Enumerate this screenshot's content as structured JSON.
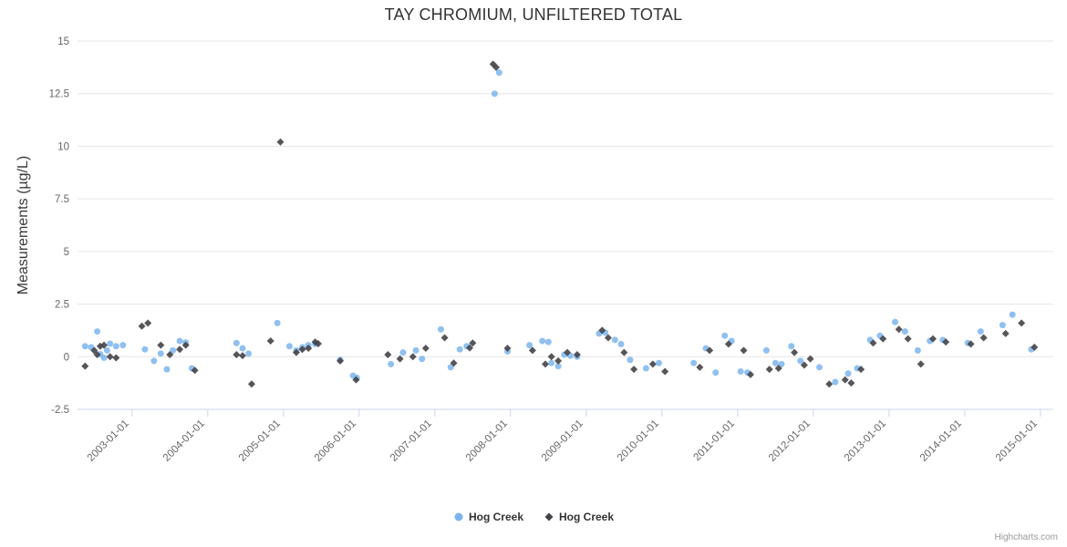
{
  "chart_data": {
    "type": "scatter",
    "title": "TAY CHROMIUM, UNFILTERED TOTAL",
    "xlabel": "",
    "ylabel": "Measurements (µg/L)",
    "ylim": [
      -2.5,
      15
    ],
    "yticks": [
      -2.5,
      0,
      2.5,
      5,
      7.5,
      10,
      12.5,
      15
    ],
    "xlim": [
      2002.28,
      2015.17
    ],
    "xticks": [
      {
        "value": 2003,
        "label": "2003-01-01"
      },
      {
        "value": 2004,
        "label": "2004-01-01"
      },
      {
        "value": 2005,
        "label": "2005-01-01"
      },
      {
        "value": 2006,
        "label": "2006-01-01"
      },
      {
        "value": 2007,
        "label": "2007-01-01"
      },
      {
        "value": 2008,
        "label": "2008-01-01"
      },
      {
        "value": 2009,
        "label": "2009-01-01"
      },
      {
        "value": 2010,
        "label": "2010-01-01"
      },
      {
        "value": 2011,
        "label": "2011-01-01"
      },
      {
        "value": 2012,
        "label": "2012-01-01"
      },
      {
        "value": 2013,
        "label": "2013-01-01"
      },
      {
        "value": 2014,
        "label": "2014-01-01"
      },
      {
        "value": 2015,
        "label": "2015-01-01"
      }
    ],
    "grid": true,
    "legend_position": "bottom",
    "credit": "Highcharts.com",
    "series": [
      {
        "name": "Hog Creek",
        "marker": "circle",
        "color": "#7cb5ec",
        "points": [
          [
            2002.38,
            0.5
          ],
          [
            2002.46,
            0.45
          ],
          [
            2002.54,
            1.2
          ],
          [
            2002.58,
            0.12
          ],
          [
            2002.63,
            -0.05
          ],
          [
            2002.67,
            0.3
          ],
          [
            2002.71,
            0.62
          ],
          [
            2002.79,
            0.5
          ],
          [
            2002.88,
            0.55
          ],
          [
            2003.17,
            0.35
          ],
          [
            2003.29,
            -0.2
          ],
          [
            2003.38,
            0.15
          ],
          [
            2003.46,
            -0.6
          ],
          [
            2003.54,
            0.3
          ],
          [
            2003.63,
            0.75
          ],
          [
            2003.71,
            0.68
          ],
          [
            2003.79,
            -0.55
          ],
          [
            2004.38,
            0.65
          ],
          [
            2004.46,
            0.4
          ],
          [
            2004.54,
            0.15
          ],
          [
            2004.92,
            1.6
          ],
          [
            2005.08,
            0.5
          ],
          [
            2005.17,
            0.3
          ],
          [
            2005.25,
            0.45
          ],
          [
            2005.33,
            0.55
          ],
          [
            2005.42,
            0.6
          ],
          [
            2005.75,
            -0.15
          ],
          [
            2005.92,
            -0.9
          ],
          [
            2005.97,
            -1.0
          ],
          [
            2006.42,
            -0.35
          ],
          [
            2006.58,
            0.2
          ],
          [
            2006.75,
            0.3
          ],
          [
            2006.83,
            -0.1
          ],
          [
            2007.08,
            1.3
          ],
          [
            2007.21,
            -0.5
          ],
          [
            2007.33,
            0.35
          ],
          [
            2007.42,
            0.5
          ],
          [
            2007.79,
            12.5
          ],
          [
            2007.85,
            13.5
          ],
          [
            2007.96,
            0.25
          ],
          [
            2008.25,
            0.55
          ],
          [
            2008.42,
            0.75
          ],
          [
            2008.5,
            0.7
          ],
          [
            2008.54,
            -0.3
          ],
          [
            2008.63,
            -0.45
          ],
          [
            2008.71,
            0.1
          ],
          [
            2008.79,
            0.05
          ],
          [
            2008.88,
            0.0
          ],
          [
            2009.17,
            1.1
          ],
          [
            2009.25,
            1.15
          ],
          [
            2009.38,
            0.8
          ],
          [
            2009.46,
            0.6
          ],
          [
            2009.58,
            -0.15
          ],
          [
            2009.79,
            -0.55
          ],
          [
            2009.96,
            -0.3
          ],
          [
            2010.42,
            -0.3
          ],
          [
            2010.58,
            0.4
          ],
          [
            2010.71,
            -0.75
          ],
          [
            2010.83,
            1.0
          ],
          [
            2010.92,
            0.75
          ],
          [
            2011.04,
            -0.7
          ],
          [
            2011.13,
            -0.75
          ],
          [
            2011.38,
            0.3
          ],
          [
            2011.5,
            -0.3
          ],
          [
            2011.58,
            -0.35
          ],
          [
            2011.71,
            0.5
          ],
          [
            2011.83,
            -0.2
          ],
          [
            2012.08,
            -0.5
          ],
          [
            2012.29,
            -1.2
          ],
          [
            2012.46,
            -0.8
          ],
          [
            2012.58,
            -0.55
          ],
          [
            2012.75,
            0.8
          ],
          [
            2012.88,
            1.0
          ],
          [
            2013.08,
            1.65
          ],
          [
            2013.21,
            1.2
          ],
          [
            2013.38,
            0.3
          ],
          [
            2013.54,
            0.75
          ],
          [
            2013.71,
            0.8
          ],
          [
            2014.04,
            0.65
          ],
          [
            2014.21,
            1.2
          ],
          [
            2014.5,
            1.5
          ],
          [
            2014.63,
            2.0
          ],
          [
            2014.88,
            0.35
          ]
        ]
      },
      {
        "name": "Hog Creek",
        "marker": "diamond",
        "color": "#434348",
        "points": [
          [
            2002.38,
            -0.45
          ],
          [
            2002.5,
            0.3
          ],
          [
            2002.54,
            0.1
          ],
          [
            2002.58,
            0.5
          ],
          [
            2002.63,
            0.55
          ],
          [
            2002.71,
            0.0
          ],
          [
            2002.79,
            -0.05
          ],
          [
            2003.13,
            1.45
          ],
          [
            2003.21,
            1.6
          ],
          [
            2003.38,
            0.55
          ],
          [
            2003.5,
            0.1
          ],
          [
            2003.63,
            0.35
          ],
          [
            2003.71,
            0.55
          ],
          [
            2003.83,
            -0.65
          ],
          [
            2004.38,
            0.1
          ],
          [
            2004.46,
            0.05
          ],
          [
            2004.58,
            -1.3
          ],
          [
            2004.83,
            0.75
          ],
          [
            2004.96,
            10.2
          ],
          [
            2005.17,
            0.2
          ],
          [
            2005.25,
            0.35
          ],
          [
            2005.33,
            0.4
          ],
          [
            2005.42,
            0.7
          ],
          [
            2005.46,
            0.62
          ],
          [
            2005.75,
            -0.2
          ],
          [
            2005.96,
            -1.1
          ],
          [
            2006.38,
            0.1
          ],
          [
            2006.54,
            -0.1
          ],
          [
            2006.71,
            0.0
          ],
          [
            2006.88,
            0.4
          ],
          [
            2007.13,
            0.9
          ],
          [
            2007.25,
            -0.3
          ],
          [
            2007.46,
            0.42
          ],
          [
            2007.5,
            0.65
          ],
          [
            2007.77,
            13.9
          ],
          [
            2007.81,
            13.75
          ],
          [
            2007.96,
            0.4
          ],
          [
            2008.29,
            0.3
          ],
          [
            2008.46,
            -0.35
          ],
          [
            2008.54,
            0.0
          ],
          [
            2008.63,
            -0.2
          ],
          [
            2008.75,
            0.2
          ],
          [
            2008.88,
            0.1
          ],
          [
            2009.21,
            1.25
          ],
          [
            2009.29,
            0.9
          ],
          [
            2009.5,
            0.2
          ],
          [
            2009.63,
            -0.6
          ],
          [
            2009.88,
            -0.35
          ],
          [
            2010.04,
            -0.7
          ],
          [
            2010.5,
            -0.5
          ],
          [
            2010.63,
            0.3
          ],
          [
            2010.88,
            0.6
          ],
          [
            2011.08,
            0.3
          ],
          [
            2011.17,
            -0.85
          ],
          [
            2011.42,
            -0.6
          ],
          [
            2011.54,
            -0.55
          ],
          [
            2011.75,
            0.2
          ],
          [
            2011.88,
            -0.4
          ],
          [
            2011.96,
            -0.1
          ],
          [
            2012.21,
            -1.3
          ],
          [
            2012.42,
            -1.1
          ],
          [
            2012.5,
            -1.25
          ],
          [
            2012.63,
            -0.6
          ],
          [
            2012.79,
            0.65
          ],
          [
            2012.92,
            0.85
          ],
          [
            2013.13,
            1.3
          ],
          [
            2013.25,
            0.85
          ],
          [
            2013.42,
            -0.35
          ],
          [
            2013.58,
            0.85
          ],
          [
            2013.75,
            0.7
          ],
          [
            2014.08,
            0.6
          ],
          [
            2014.25,
            0.9
          ],
          [
            2014.54,
            1.1
          ],
          [
            2014.75,
            1.6
          ],
          [
            2014.92,
            0.45
          ]
        ]
      }
    ]
  }
}
